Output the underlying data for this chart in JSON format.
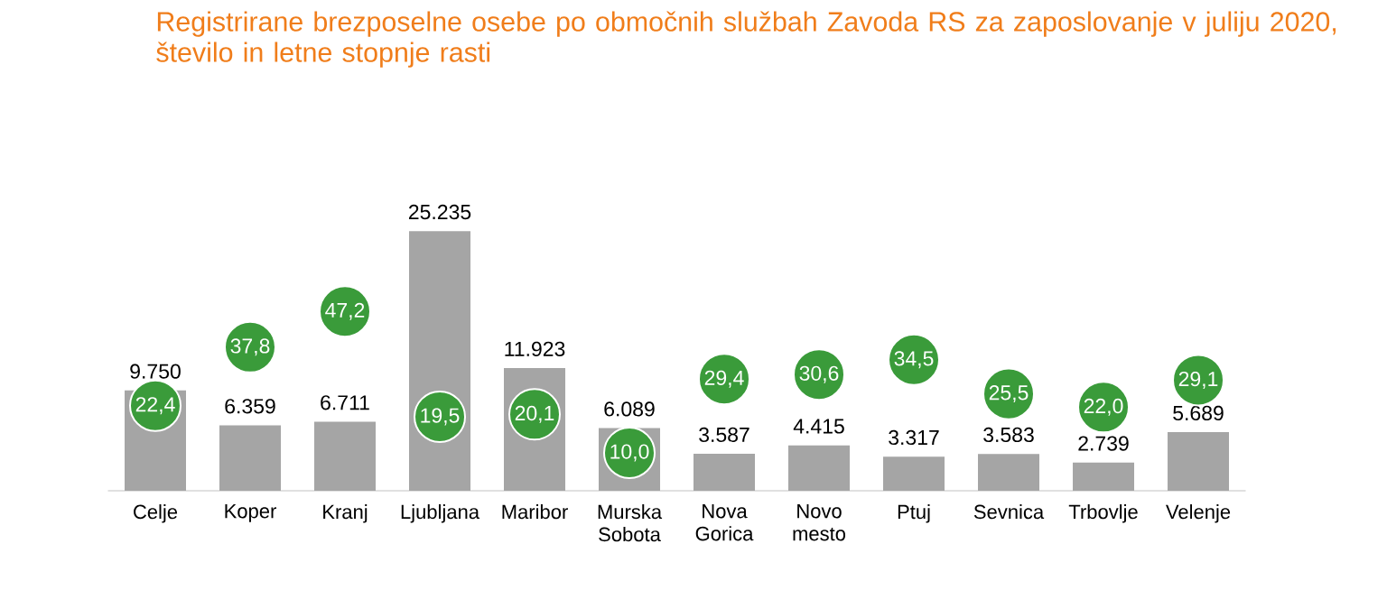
{
  "chart_data": {
    "type": "bar",
    "title": "Registrirane brezposelne osebe po območnih službah Zavoda RS za zaposlovanje v juliju 2020, število in letne stopnje rasti",
    "categories": [
      "Celje",
      "Koper",
      "Kranj",
      "Ljubljana",
      "Maribor",
      "Murska Sobota",
      "Nova Gorica",
      "Novo mesto",
      "Ptuj",
      "Sevnica",
      "Trbovlje",
      "Velenje"
    ],
    "series": [
      {
        "color": "#a5a5a5",
        "values": [
          9750,
          6359,
          6711,
          25235,
          11923,
          6089,
          3587,
          4415,
          3317,
          3583,
          2739,
          5689
        ],
        "value_labels": [
          "9.750",
          "6.359",
          "6.711",
          "25.235",
          "11.923",
          "6.089",
          "3.587",
          "4.415",
          "3.317",
          "3.583",
          "2.739",
          "5.689"
        ]
      },
      {
        "type": "scatter",
        "axis": "y2",
        "marker": "circle",
        "color": "#3a9b3a",
        "values": [
          22.4,
          37.8,
          47.2,
          19.5,
          20.1,
          10.0,
          29.4,
          30.6,
          34.5,
          25.5,
          22.0,
          29.1
        ],
        "value_labels": [
          "22,4",
          "37,8",
          "47,2",
          "19,5",
          "20,1",
          "10,0",
          "29,4",
          "30,6",
          "34,5",
          "25,5",
          "22,0",
          "29,1"
        ]
      }
    ],
    "tick_labels": "x"
  }
}
